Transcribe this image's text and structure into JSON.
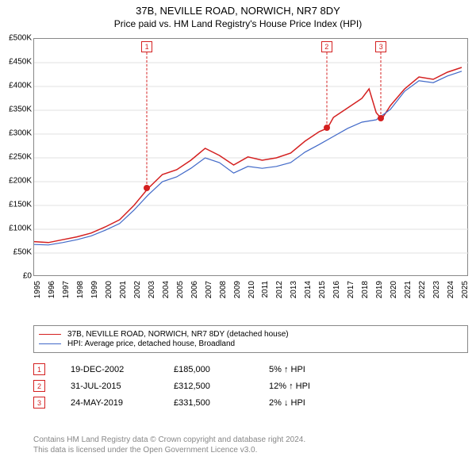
{
  "title": "37B, NEVILLE ROAD, NORWICH, NR7 8DY",
  "subtitle": "Price paid vs. HM Land Registry's House Price Index (HPI)",
  "chart": {
    "type": "line",
    "background_color": "#ffffff",
    "grid_color": "#e0e0e0",
    "axis_color": "#888888",
    "x": {
      "min": 1995,
      "max": 2025.5,
      "ticks": [
        1995,
        1996,
        1997,
        1998,
        1999,
        2000,
        2001,
        2002,
        2003,
        2004,
        2005,
        2006,
        2007,
        2008,
        2009,
        2010,
        2011,
        2012,
        2013,
        2014,
        2015,
        2016,
        2017,
        2018,
        2019,
        2020,
        2021,
        2022,
        2023,
        2024,
        2025
      ],
      "label_fontsize": 10
    },
    "y": {
      "min": 0,
      "max": 500000,
      "tick_step": 50000,
      "tick_labels": [
        "£0",
        "£50K",
        "£100K",
        "£150K",
        "£200K",
        "£250K",
        "£300K",
        "£350K",
        "£400K",
        "£450K",
        "£500K"
      ],
      "label_fontsize": 10
    },
    "series": [
      {
        "id": "property",
        "label": "37B, NEVILLE ROAD, NORWICH, NR7 8DY (detached house)",
        "color": "#d42020",
        "line_width": 1.5,
        "data": [
          [
            1995,
            74000
          ],
          [
            1996,
            72000
          ],
          [
            1997,
            78000
          ],
          [
            1998,
            84000
          ],
          [
            1999,
            92000
          ],
          [
            2000,
            105000
          ],
          [
            2001,
            120000
          ],
          [
            2002,
            150000
          ],
          [
            2002.97,
            185000
          ],
          [
            2004,
            215000
          ],
          [
            2005,
            225000
          ],
          [
            2006,
            245000
          ],
          [
            2007,
            270000
          ],
          [
            2008,
            255000
          ],
          [
            2009,
            235000
          ],
          [
            2010,
            252000
          ],
          [
            2011,
            245000
          ],
          [
            2012,
            250000
          ],
          [
            2013,
            260000
          ],
          [
            2014,
            285000
          ],
          [
            2015,
            305000
          ],
          [
            2015.58,
            312500
          ],
          [
            2016,
            335000
          ],
          [
            2017,
            355000
          ],
          [
            2018,
            375000
          ],
          [
            2018.5,
            395000
          ],
          [
            2019,
            345000
          ],
          [
            2019.39,
            331500
          ],
          [
            2020,
            360000
          ],
          [
            2021,
            395000
          ],
          [
            2022,
            420000
          ],
          [
            2023,
            415000
          ],
          [
            2024,
            430000
          ],
          [
            2025,
            440000
          ]
        ]
      },
      {
        "id": "hpi",
        "label": "HPI: Average price, detached house, Broadland",
        "color": "#4169c8",
        "line_width": 1.2,
        "data": [
          [
            1995,
            68000
          ],
          [
            1996,
            67000
          ],
          [
            1997,
            72000
          ],
          [
            1998,
            78000
          ],
          [
            1999,
            86000
          ],
          [
            2000,
            98000
          ],
          [
            2001,
            112000
          ],
          [
            2002,
            140000
          ],
          [
            2003,
            172000
          ],
          [
            2004,
            200000
          ],
          [
            2005,
            210000
          ],
          [
            2006,
            228000
          ],
          [
            2007,
            250000
          ],
          [
            2008,
            240000
          ],
          [
            2009,
            218000
          ],
          [
            2010,
            232000
          ],
          [
            2011,
            228000
          ],
          [
            2012,
            232000
          ],
          [
            2013,
            240000
          ],
          [
            2014,
            262000
          ],
          [
            2015,
            278000
          ],
          [
            2016,
            295000
          ],
          [
            2017,
            312000
          ],
          [
            2018,
            325000
          ],
          [
            2019,
            330000
          ],
          [
            2020,
            352000
          ],
          [
            2021,
            390000
          ],
          [
            2022,
            412000
          ],
          [
            2023,
            408000
          ],
          [
            2024,
            422000
          ],
          [
            2025,
            432000
          ]
        ]
      }
    ],
    "sale_markers": [
      {
        "idx": "1",
        "x": 2002.97,
        "y": 185000
      },
      {
        "idx": "2",
        "x": 2015.58,
        "y": 312500
      },
      {
        "idx": "3",
        "x": 2019.39,
        "y": 331500
      }
    ]
  },
  "legend": {
    "border_color": "#888888",
    "fontsize": 10
  },
  "sales": [
    {
      "idx": "1",
      "date": "19-DEC-2002",
      "price": "£185,000",
      "delta": "5% ↑ HPI"
    },
    {
      "idx": "2",
      "date": "31-JUL-2015",
      "price": "£312,500",
      "delta": "12% ↑ HPI"
    },
    {
      "idx": "3",
      "date": "24-MAY-2019",
      "price": "£331,500",
      "delta": "2% ↓ HPI"
    }
  ],
  "footer": {
    "line1": "Contains HM Land Registry data © Crown copyright and database right 2024.",
    "line2": "This data is licensed under the Open Government Licence v3.0.",
    "color": "#888888"
  }
}
